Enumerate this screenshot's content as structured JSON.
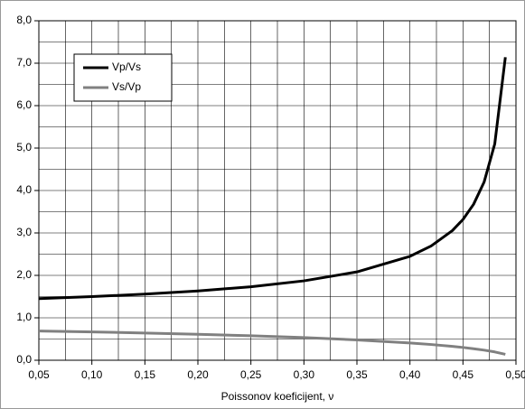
{
  "chart_data": {
    "type": "line",
    "xlabel": "Poissonov koeficijent, ν",
    "x": [
      0.05,
      0.1,
      0.15,
      0.2,
      0.25,
      0.3,
      0.35,
      0.4,
      0.42,
      0.44,
      0.45,
      0.46,
      0.47,
      0.48,
      0.49
    ],
    "series": [
      {
        "name": "Vp/Vs",
        "color": "#000000",
        "values": [
          1.453,
          1.5,
          1.558,
          1.633,
          1.732,
          1.871,
          2.082,
          2.449,
          2.693,
          3.055,
          3.317,
          3.674,
          4.203,
          5.099,
          7.141
        ]
      },
      {
        "name": "Vs/Vp",
        "color": "#808080",
        "values": [
          0.688,
          0.667,
          0.642,
          0.612,
          0.577,
          0.535,
          0.48,
          0.408,
          0.371,
          0.327,
          0.302,
          0.272,
          0.238,
          0.196,
          0.14
        ]
      }
    ],
    "xlim": [
      0.05,
      0.5
    ],
    "ylim": [
      0,
      8
    ],
    "xticks": [
      {
        "value": 0.05,
        "label": "0,05"
      },
      {
        "value": 0.1,
        "label": "0,10"
      },
      {
        "value": 0.15,
        "label": "0,15"
      },
      {
        "value": 0.2,
        "label": "0,20"
      },
      {
        "value": 0.25,
        "label": "0,25"
      },
      {
        "value": 0.3,
        "label": "0,30"
      },
      {
        "value": 0.35,
        "label": "0,35"
      },
      {
        "value": 0.4,
        "label": "0,40"
      },
      {
        "value": 0.45,
        "label": "0,45"
      },
      {
        "value": 0.5,
        "label": "0,50"
      }
    ],
    "yticks": [
      {
        "value": 0,
        "label": "0,0"
      },
      {
        "value": 1,
        "label": "1,0"
      },
      {
        "value": 2,
        "label": "2,0"
      },
      {
        "value": 3,
        "label": "3,0"
      },
      {
        "value": 4,
        "label": "4,0"
      },
      {
        "value": 5,
        "label": "5,0"
      },
      {
        "value": 6,
        "label": "6,0"
      },
      {
        "value": 7,
        "label": "7,0"
      },
      {
        "value": 8,
        "label": "8,0"
      }
    ],
    "xminor": [
      0.075,
      0.125,
      0.175,
      0.225,
      0.275,
      0.325,
      0.375,
      0.425,
      0.475
    ],
    "yminor": [
      0.5,
      1.5,
      2.5,
      3.5,
      4.5,
      5.5,
      6.5,
      7.5
    ],
    "grid": true,
    "legend": "upper-left"
  }
}
